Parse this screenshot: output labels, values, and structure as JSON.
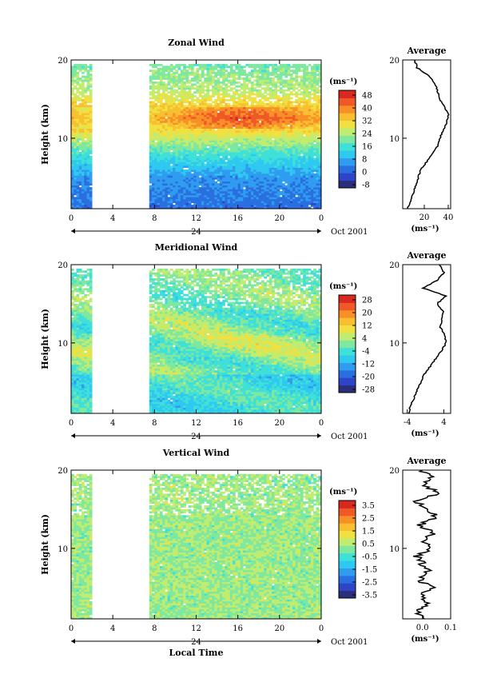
{
  "colors": {
    "scale": [
      "#2b2f7a",
      "#2f45c8",
      "#2a6fe0",
      "#2f9cf0",
      "#2fc8f0",
      "#3fe0d8",
      "#7ee8a0",
      "#c0ec70",
      "#f0e040",
      "#f8c030",
      "#f89028",
      "#f05828",
      "#d82820"
    ],
    "gap": "#ffffff",
    "line": "#000000"
  },
  "chart_data": [
    {
      "type": "heatmap",
      "title": "Zonal Wind",
      "ylabel": "Height (km)",
      "x_ticks": [
        "0",
        "4",
        "8",
        "12",
        "16",
        "20",
        "0"
      ],
      "y_ticks": [
        "20",
        "10"
      ],
      "day_label": "24",
      "month_label": "Oct 2001",
      "colorbar": {
        "unit": "(ms⁻¹)",
        "ticks": [
          "48",
          "40",
          "32",
          "24",
          "16",
          "8",
          "0",
          "-8"
        ],
        "min": -8,
        "max": 52
      },
      "xlim": [
        0,
        24
      ],
      "ylim": [
        1,
        20
      ],
      "data_gap_hours": [
        2.0,
        7.5
      ],
      "profile_kind": "zonal",
      "average": {
        "title": "Average",
        "xlabel": "(ms⁻¹)",
        "x_ticks": [
          "20",
          "40"
        ],
        "xlim": [
          2,
          42
        ],
        "heights": [
          1,
          2,
          3,
          4,
          5,
          6,
          7,
          8,
          9,
          10,
          11,
          12,
          13,
          14,
          15,
          16,
          17,
          18,
          19,
          20
        ],
        "values": [
          6,
          9,
          11,
          13,
          15,
          17,
          22,
          27,
          31,
          33,
          36,
          39,
          40,
          37,
          33,
          31,
          29,
          24,
          14,
          12
        ]
      }
    },
    {
      "type": "heatmap",
      "title": "Meridional Wind",
      "ylabel": "Height (km)",
      "x_ticks": [
        "0",
        "4",
        "8",
        "12",
        "16",
        "20",
        "0"
      ],
      "y_ticks": [
        "20",
        "10"
      ],
      "day_label": "24",
      "month_label": "Oct 2001",
      "colorbar": {
        "unit": "(ms⁻¹)",
        "ticks": [
          "28",
          "20",
          "12",
          "4",
          "-4",
          "-12",
          "-20",
          "-28"
        ],
        "min": -30,
        "max": 30
      },
      "xlim": [
        0,
        24
      ],
      "ylim": [
        1,
        20
      ],
      "data_gap_hours": [
        2.0,
        7.5
      ],
      "profile_kind": "meridional",
      "average": {
        "title": "Average",
        "xlabel": "(ms⁻¹)",
        "x_ticks": [
          "-4",
          "4"
        ],
        "xlim": [
          -5,
          5.5
        ],
        "heights": [
          1,
          2,
          3,
          4,
          5,
          6,
          7,
          8,
          9,
          10,
          11,
          12,
          13,
          14,
          15,
          16,
          17,
          18,
          19,
          20
        ],
        "values": [
          -3.8,
          -3.2,
          -2.5,
          -1.8,
          -1.0,
          -0.3,
          1.0,
          2.2,
          3.5,
          4.5,
          4.2,
          3.2,
          3.5,
          4.0,
          2.5,
          4.5,
          -0.5,
          2.5,
          4.0,
          3.0
        ]
      }
    },
    {
      "type": "heatmap",
      "title": "Vertical Wind",
      "ylabel": "Height (km)",
      "xlabel": "Local Time",
      "x_ticks": [
        "0",
        "4",
        "8",
        "12",
        "16",
        "20",
        "0"
      ],
      "y_ticks": [
        "20",
        "10"
      ],
      "day_label": "24",
      "month_label": "Oct 2001",
      "colorbar": {
        "unit": "(ms⁻¹)",
        "ticks": [
          "3.5",
          "2.5",
          "1.5",
          "0.5",
          "-0.5",
          "-1.5",
          "-2.5",
          "-3.5"
        ],
        "min": -4,
        "max": 4
      },
      "xlim": [
        0,
        24
      ],
      "ylim": [
        1,
        20
      ],
      "data_gap_hours": [
        2.0,
        7.5
      ],
      "profile_kind": "vertical",
      "average": {
        "title": "Average",
        "xlabel": "(ms⁻¹)",
        "x_ticks": [
          "0.0",
          "0.1"
        ],
        "xlim": [
          -0.07,
          0.1
        ],
        "heights": [
          1,
          2,
          3,
          4,
          5,
          6,
          7,
          8,
          9,
          10,
          11,
          12,
          13,
          14,
          15,
          16,
          17,
          18,
          19,
          20
        ],
        "values": [
          0.0,
          -0.02,
          0.02,
          0.0,
          0.03,
          -0.01,
          0.02,
          0.0,
          -0.02,
          0.03,
          0.0,
          0.04,
          -0.01,
          0.05,
          0.02,
          -0.03,
          0.06,
          0.01,
          0.03,
          0.0
        ]
      }
    }
  ]
}
